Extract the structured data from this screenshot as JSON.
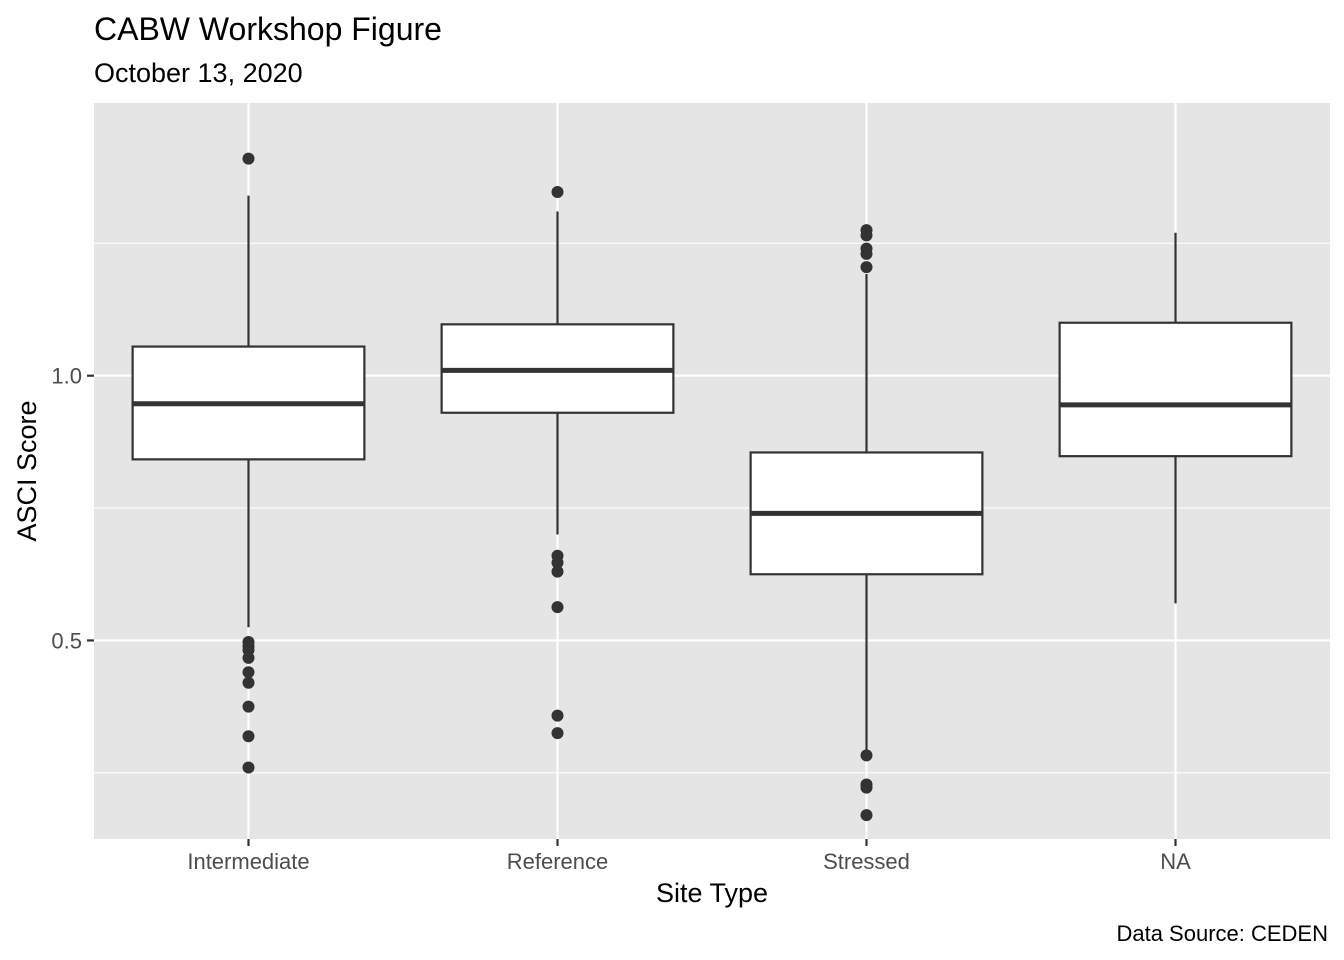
{
  "chart_data": {
    "type": "boxplot",
    "title": "CABW Workshop Figure",
    "subtitle": "October 13, 2020",
    "caption": "Data Source: CEDEN",
    "xlabel": "Site Type",
    "ylabel": "ASCI Score",
    "ylim": [
      0.125,
      1.515
    ],
    "y_ticks": [
      0.5,
      1.0
    ],
    "y_tick_labels": [
      "0.5",
      "1.0"
    ],
    "y_minor_ticks": [
      0.25,
      0.75,
      1.25
    ],
    "grid": true,
    "categories": [
      "Intermediate",
      "Reference",
      "Stressed",
      "NA"
    ],
    "boxes": [
      {
        "category": "Intermediate",
        "whisker_low": 0.525,
        "q1": 0.842,
        "median": 0.947,
        "q3": 1.055,
        "whisker_high": 1.34,
        "outliers": [
          1.41,
          0.497,
          0.489,
          0.482,
          0.467,
          0.44,
          0.42,
          0.375,
          0.319,
          0.26
        ]
      },
      {
        "category": "Reference",
        "whisker_low": 0.7,
        "q1": 0.93,
        "median": 1.01,
        "q3": 1.097,
        "whisker_high": 1.31,
        "outliers": [
          1.347,
          0.66,
          0.647,
          0.63,
          0.563,
          0.358,
          0.325
        ]
      },
      {
        "category": "Stressed",
        "whisker_low": 0.285,
        "q1": 0.625,
        "median": 0.74,
        "q3": 0.855,
        "whisker_high": 1.192,
        "outliers": [
          1.275,
          1.265,
          1.24,
          1.23,
          1.205,
          0.283,
          0.228,
          0.222,
          0.17
        ]
      },
      {
        "category": "NA",
        "whisker_low": 0.57,
        "q1": 0.848,
        "median": 0.945,
        "q3": 1.1,
        "whisker_high": 1.27,
        "outliers": []
      }
    ],
    "colors": {
      "panel_background": "#e5e5e5",
      "grid": "#ffffff",
      "box_fill": "#ffffff",
      "box_stroke": "#333333",
      "points": "#333333"
    }
  }
}
